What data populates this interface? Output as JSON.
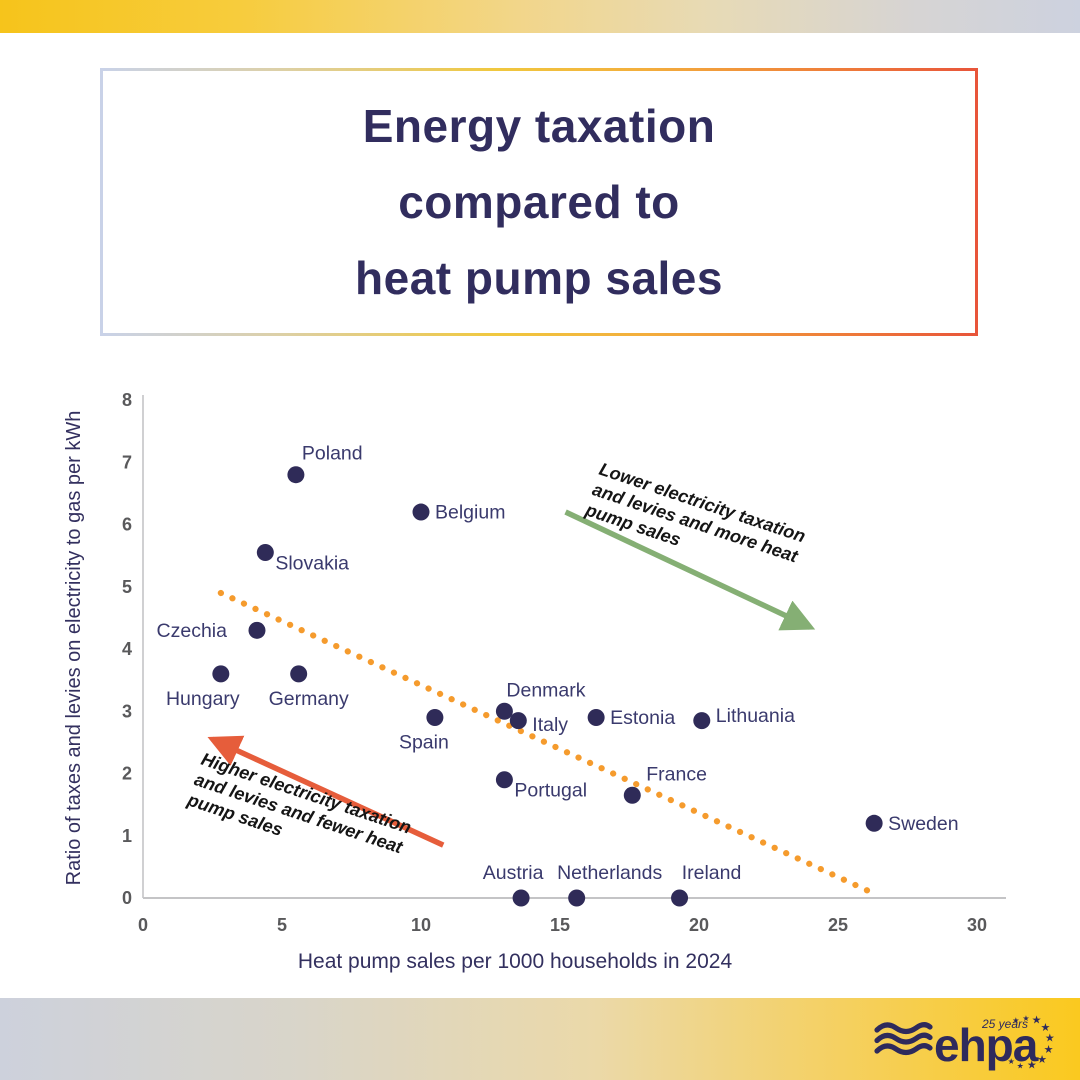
{
  "title": {
    "lines": [
      "Energy taxation",
      "compared to",
      "heat pump sales"
    ]
  },
  "chart_data": {
    "type": "scatter",
    "title": "Energy taxation compared to heat pump sales",
    "xlabel": "Heat pump sales per 1000 households in 2024",
    "ylabel": "Ratio of taxes and levies on electricity to gas per kWh",
    "xlim": [
      0,
      30
    ],
    "ylim": [
      0,
      8
    ],
    "xticks": [
      0,
      5,
      10,
      15,
      20,
      25,
      30
    ],
    "yticks": [
      0,
      1,
      2,
      3,
      4,
      5,
      6,
      7,
      8
    ],
    "grid": false,
    "points": [
      {
        "country": "Hungary",
        "x": 2.8,
        "y": 3.6,
        "label_pos": "below",
        "dx": -18
      },
      {
        "country": "Czechia",
        "x": 4.1,
        "y": 4.3,
        "label_pos": "left",
        "dx": -16
      },
      {
        "country": "Slovakia",
        "x": 4.4,
        "y": 5.55,
        "label_pos": "below-right"
      },
      {
        "country": "Poland",
        "x": 5.5,
        "y": 6.8,
        "label_pos": "above-right"
      },
      {
        "country": "Germany",
        "x": 5.6,
        "y": 3.6,
        "label_pos": "below",
        "dx": 10
      },
      {
        "country": "Belgium",
        "x": 10.0,
        "y": 6.2,
        "label_pos": "right"
      },
      {
        "country": "Spain",
        "x": 10.5,
        "y": 2.9,
        "label_pos": "below",
        "dx": -11
      },
      {
        "country": "Denmark",
        "x": 13.0,
        "y": 3.0,
        "label_pos": "above-right",
        "dx": -4
      },
      {
        "country": "Portugal",
        "x": 13.0,
        "y": 1.9,
        "label_pos": "below-right"
      },
      {
        "country": "Italy",
        "x": 13.5,
        "y": 2.85,
        "label_pos": "right",
        "dy": 4
      },
      {
        "country": "Austria",
        "x": 13.6,
        "y": 0,
        "label_pos": "above",
        "dx": -8
      },
      {
        "country": "Netherlands",
        "x": 15.6,
        "y": 0,
        "label_pos": "above",
        "dx": 33
      },
      {
        "country": "Estonia",
        "x": 16.3,
        "y": 2.9,
        "label_pos": "right"
      },
      {
        "country": "France",
        "x": 17.6,
        "y": 1.65,
        "label_pos": "above-right",
        "dx": 8
      },
      {
        "country": "Ireland",
        "x": 19.3,
        "y": 0,
        "label_pos": "above",
        "dx": 32
      },
      {
        "country": "Lithuania",
        "x": 20.1,
        "y": 2.85,
        "label_pos": "right",
        "dy": -5
      },
      {
        "country": "Sweden",
        "x": 26.3,
        "y": 1.2,
        "label_pos": "right"
      }
    ],
    "trendline": {
      "style": "dotted",
      "from": [
        2.8,
        4.9
      ],
      "to": [
        26.4,
        0.05
      ]
    },
    "annotations": [
      {
        "id": "lower",
        "lines": [
          "Lower electricity taxation",
          "and levies and more heat",
          "pump sales"
        ],
        "arrow_from": [
          15.2,
          6.2
        ],
        "arrow_to": [
          24.0,
          4.35
        ]
      },
      {
        "id": "higher",
        "lines": [
          "Higher electricity taxation",
          "and levies and fewer heat",
          "pump sales"
        ],
        "arrow_from": [
          10.8,
          0.85
        ],
        "arrow_to": [
          2.5,
          2.55
        ]
      }
    ],
    "legend": null
  },
  "colors": {
    "title_text": "#312D5E",
    "dot": "#2F2B58",
    "country_label": "#3A3A6D",
    "tick_label": "#59595B",
    "axis_line": "#C4C4C6",
    "axis_title": "#33305F",
    "trend": "#F59B2D",
    "arrow_lower": "#85AF74",
    "arrow_higher": "#E65D3B",
    "annotation_text": "#151515",
    "logo_navy": "#2E2A5C"
  },
  "footer": {
    "brand": "ehpa",
    "anniversary": "25 years"
  }
}
